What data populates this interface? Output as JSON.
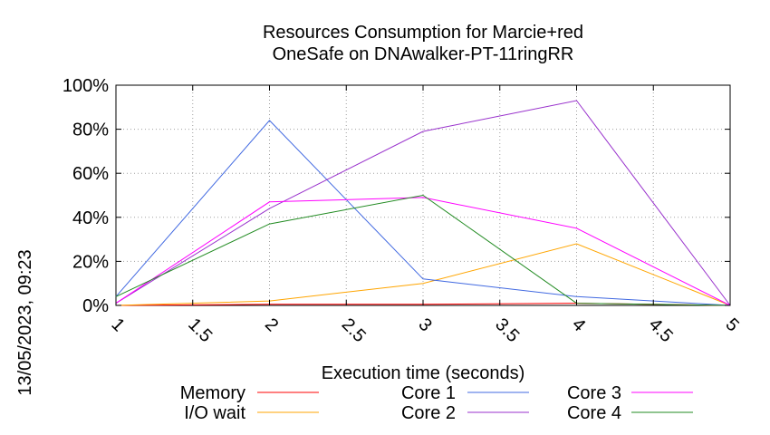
{
  "chart_data": {
    "type": "line",
    "title": [
      "Resources Consumption for Marcie+red",
      "OneSafe on DNAwalker-PT-11ringRR"
    ],
    "xlabel": "Execution time (seconds)",
    "ylabel": "",
    "side_label": "13/05/2023, 09:23",
    "xlim": [
      1,
      5
    ],
    "ylim": [
      0,
      100
    ],
    "x_ticks": [
      "1",
      "1.5",
      "2",
      "2.5",
      "3",
      "3.5",
      "4",
      "4.5",
      "5"
    ],
    "x_tick_values": [
      1,
      1.5,
      2,
      2.5,
      3,
      3.5,
      4,
      4.5,
      5
    ],
    "y_ticks": [
      "0%",
      "20%",
      "40%",
      "60%",
      "80%",
      "100%"
    ],
    "y_tick_values": [
      0,
      20,
      40,
      60,
      80,
      100
    ],
    "grid": true,
    "legend_position": "bottom",
    "series": [
      {
        "name": "Memory",
        "color": "#ff0000",
        "x": [
          1,
          2,
          3,
          4,
          5
        ],
        "y": [
          0,
          0.5,
          0.5,
          1,
          0
        ]
      },
      {
        "name": "I/O wait",
        "color": "#ffa500",
        "x": [
          1,
          2,
          3,
          4,
          5
        ],
        "y": [
          0,
          2,
          10,
          28,
          0
        ]
      },
      {
        "name": "Core 1",
        "color": "#4169e1",
        "x": [
          1,
          2,
          3,
          4,
          5
        ],
        "y": [
          4,
          84,
          12,
          4,
          0
        ]
      },
      {
        "name": "Core 2",
        "color": "#9932cc",
        "x": [
          1,
          2,
          3,
          4,
          5
        ],
        "y": [
          1,
          44,
          79,
          93,
          0
        ]
      },
      {
        "name": "Core 3",
        "color": "#ff00ff",
        "x": [
          1,
          2,
          3,
          4,
          5
        ],
        "y": [
          1,
          47,
          49,
          35,
          0
        ]
      },
      {
        "name": "Core 4",
        "color": "#228b22",
        "x": [
          1,
          2,
          3,
          4,
          5
        ],
        "y": [
          4,
          37,
          50,
          1,
          0
        ]
      }
    ]
  }
}
